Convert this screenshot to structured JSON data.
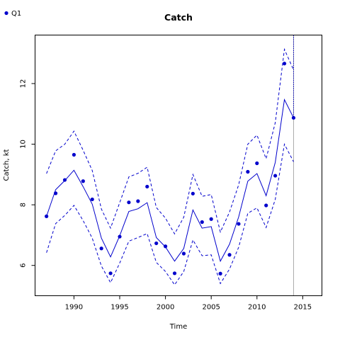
{
  "chart_data": {
    "type": "line",
    "title": "Catch",
    "xlabel": "Time",
    "ylabel": "Catch, kt",
    "xlim": [
      1985.75,
      2017.1
    ],
    "ylim": [
      5.0,
      13.6
    ],
    "xticks": [
      1990,
      1995,
      2000,
      2005,
      2010,
      2015
    ],
    "yticks": [
      6,
      8,
      10,
      12
    ],
    "legend": {
      "position": "top-left",
      "entries": [
        "Q1"
      ]
    },
    "colors": {
      "series": "#0000cc",
      "vline": "#aaaaaa",
      "frame": "#000000"
    },
    "vline_x": 2014,
    "x": [
      1987,
      1988,
      1989,
      1990,
      1991,
      1992,
      1993,
      1994,
      1995,
      1996,
      1997,
      1998,
      1999,
      2000,
      2001,
      2002,
      2003,
      2004,
      2005,
      2006,
      2007,
      2008,
      2009,
      2010,
      2011,
      2012,
      2013,
      2014
    ],
    "series": [
      {
        "name": "Q1",
        "role": "observed",
        "style": "points",
        "values": [
          7.62,
          8.38,
          8.82,
          9.65,
          8.78,
          8.18,
          6.56,
          5.74,
          6.95,
          8.08,
          8.12,
          8.6,
          6.73,
          6.63,
          5.74,
          6.39,
          8.37,
          7.43,
          7.53,
          5.73,
          6.35,
          7.37,
          9.09,
          9.37,
          7.98,
          8.96,
          12.66,
          10.87
        ]
      },
      {
        "role": "fitted",
        "style": "solid",
        "values": [
          7.62,
          8.5,
          8.8,
          9.14,
          8.6,
          8.02,
          6.9,
          6.28,
          6.98,
          7.78,
          7.87,
          8.07,
          6.92,
          6.61,
          6.14,
          6.56,
          7.83,
          7.23,
          7.28,
          6.14,
          6.7,
          7.6,
          8.78,
          9.03,
          8.3,
          9.4,
          11.47,
          10.87
        ]
      },
      {
        "role": "upper",
        "style": "dashed",
        "values": [
          9.03,
          9.78,
          10.0,
          10.43,
          9.8,
          9.13,
          7.86,
          7.23,
          8.07,
          8.92,
          9.04,
          9.24,
          7.91,
          7.56,
          7.04,
          7.59,
          9.0,
          8.28,
          8.34,
          7.1,
          7.76,
          8.66,
          10.0,
          10.3,
          9.52,
          10.71,
          13.13,
          12.45
        ]
      },
      {
        "role": "lower",
        "style": "dashed",
        "values": [
          6.42,
          7.38,
          7.65,
          7.98,
          7.48,
          6.9,
          5.98,
          5.43,
          6.08,
          6.8,
          6.92,
          7.05,
          6.1,
          5.8,
          5.36,
          5.8,
          6.84,
          6.32,
          6.35,
          5.4,
          5.88,
          6.6,
          7.72,
          7.9,
          7.25,
          8.18,
          10.0,
          9.42
        ]
      }
    ]
  }
}
